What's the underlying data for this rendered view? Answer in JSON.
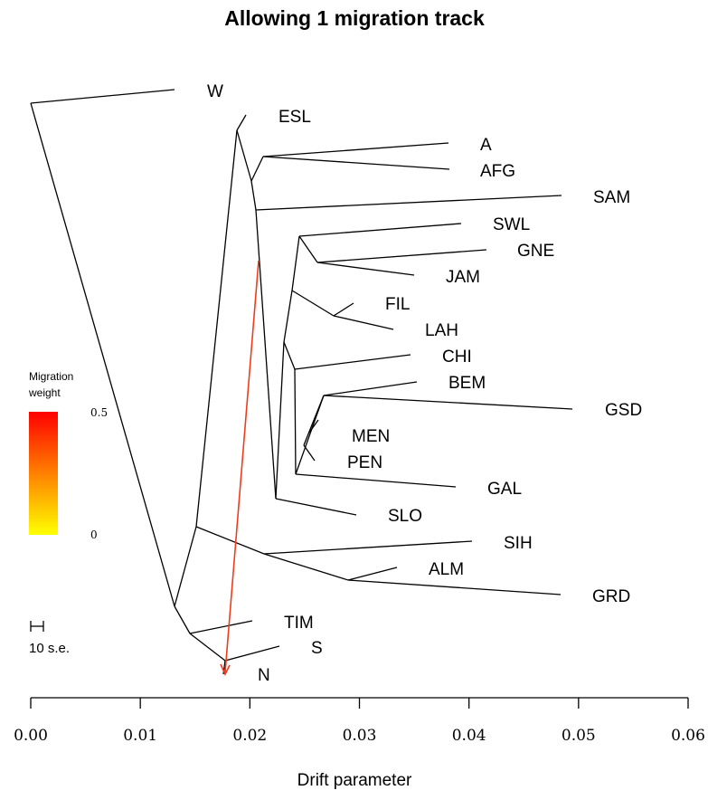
{
  "title": "Allowing 1 migration track",
  "x_axis": {
    "label": "Drift parameter",
    "ticks": [
      "0.00",
      "0.01",
      "0.02",
      "0.03",
      "0.04",
      "0.05",
      "0.06"
    ]
  },
  "legend": {
    "title_line1": "Migration",
    "title_line2": "weight",
    "max_label": "0.5",
    "min_label": "0",
    "color_max": "#ff0000",
    "color_min": "#ffff00"
  },
  "scale_bar": {
    "label": "10 s.e."
  },
  "migration_color": "#f03c1e",
  "tips": [
    {
      "name": "W",
      "drift": 0.0135
    },
    {
      "name": "ESL",
      "drift": 0.0202
    },
    {
      "name": "A",
      "drift": 0.0391
    },
    {
      "name": "AFG",
      "drift": 0.0391
    },
    {
      "name": "SAM",
      "drift": 0.0497
    },
    {
      "name": "SWL",
      "drift": 0.0402
    },
    {
      "name": "GNE",
      "drift": 0.0424
    },
    {
      "name": "JAM",
      "drift": 0.0359
    },
    {
      "name": "FIL",
      "drift": 0.0302
    },
    {
      "name": "LAH",
      "drift": 0.0337
    },
    {
      "name": "CHI",
      "drift": 0.0356
    },
    {
      "name": "BEM",
      "drift": 0.0361
    },
    {
      "name": "GSD",
      "drift": 0.0507
    },
    {
      "name": "MEN",
      "drift": 0.0266
    },
    {
      "name": "PEN",
      "drift": 0.0266
    },
    {
      "name": "GAL",
      "drift": 0.0398
    },
    {
      "name": "SLO",
      "drift": 0.0307
    },
    {
      "name": "SIH",
      "drift": 0.0414
    },
    {
      "name": "ALM",
      "drift": 0.0344
    },
    {
      "name": "GRD",
      "drift": 0.0498
    },
    {
      "name": "TIM",
      "drift": 0.0207
    },
    {
      "name": "S",
      "drift": 0.0232
    },
    {
      "name": "N",
      "drift": 0.0177
    }
  ]
}
